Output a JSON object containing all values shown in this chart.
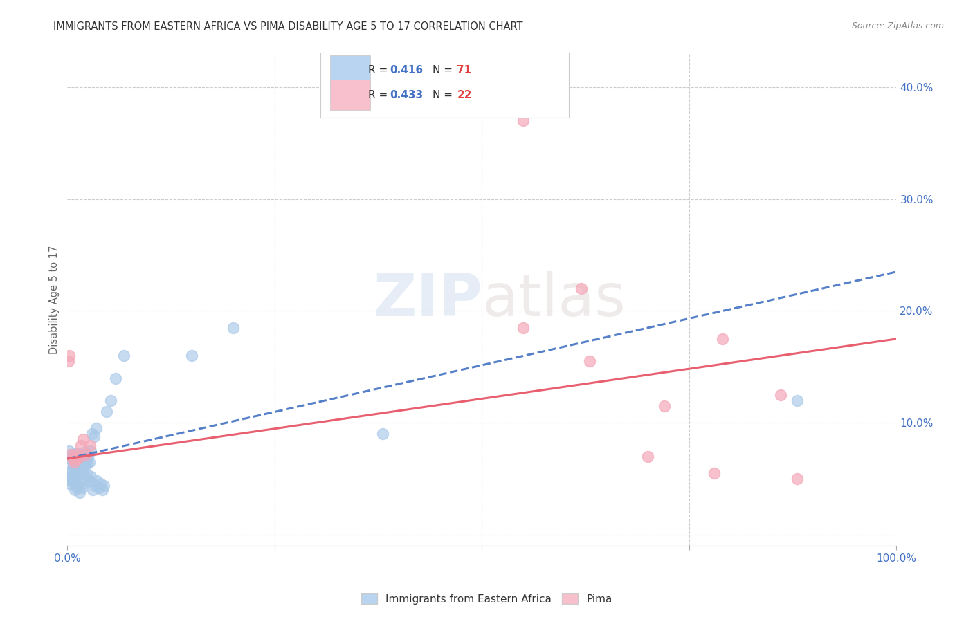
{
  "title": "IMMIGRANTS FROM EASTERN AFRICA VS PIMA DISABILITY AGE 5 TO 17 CORRELATION CHART",
  "source": "Source: ZipAtlas.com",
  "ylabel": "Disability Age 5 to 17",
  "xlim": [
    0.0,
    1.0
  ],
  "ylim": [
    -0.01,
    0.43
  ],
  "xticks": [
    0.0,
    0.25,
    0.5,
    0.75,
    1.0
  ],
  "xticklabels": [
    "0.0%",
    "",
    "",
    "",
    "100.0%"
  ],
  "yticks": [
    0.0,
    0.1,
    0.2,
    0.3,
    0.4
  ],
  "yticklabels": [
    "",
    "10.0%",
    "20.0%",
    "30.0%",
    "40.0%"
  ],
  "series1_color": "#a8c8e8",
  "series2_color": "#f4a8b8",
  "series1_line_color": "#5580c8",
  "series2_line_color": "#e86070",
  "grid_color": "#cccccc",
  "title_color": "#333333",
  "axis_label_color": "#666666",
  "tick_color": "#4472c4",
  "background_color": "#ffffff",
  "legend_box_color1": "#b8d4f0",
  "legend_box_color2": "#f8c0cc",
  "legend_text_color": "#4472c4",
  "scatter1_x": [
    0.002,
    0.003,
    0.004,
    0.005,
    0.006,
    0.007,
    0.008,
    0.009,
    0.01,
    0.011,
    0.012,
    0.013,
    0.014,
    0.015,
    0.016,
    0.017,
    0.018,
    0.019,
    0.02,
    0.021,
    0.022,
    0.023,
    0.024,
    0.025,
    0.026,
    0.028,
    0.03,
    0.032,
    0.035,
    0.003,
    0.005,
    0.007,
    0.008,
    0.009,
    0.011,
    0.013,
    0.016,
    0.019,
    0.021,
    0.001,
    0.002,
    0.003,
    0.004,
    0.006,
    0.007,
    0.009,
    0.011,
    0.013,
    0.015,
    0.017,
    0.019,
    0.022,
    0.024,
    0.026,
    0.028,
    0.031,
    0.033,
    0.036,
    0.038,
    0.04,
    0.042,
    0.044,
    0.047,
    0.052,
    0.058,
    0.068,
    0.38,
    0.2,
    0.15,
    0.88
  ],
  "scatter1_y": [
    0.075,
    0.068,
    0.07,
    0.067,
    0.072,
    0.063,
    0.066,
    0.068,
    0.071,
    0.073,
    0.065,
    0.07,
    0.068,
    0.066,
    0.069,
    0.072,
    0.065,
    0.068,
    0.07,
    0.074,
    0.066,
    0.071,
    0.064,
    0.069,
    0.065,
    0.075,
    0.09,
    0.088,
    0.095,
    0.055,
    0.058,
    0.06,
    0.052,
    0.056,
    0.054,
    0.06,
    0.058,
    0.055,
    0.062,
    0.05,
    0.048,
    0.052,
    0.045,
    0.05,
    0.048,
    0.04,
    0.042,
    0.044,
    0.038,
    0.042,
    0.046,
    0.05,
    0.054,
    0.048,
    0.052,
    0.04,
    0.044,
    0.048,
    0.042,
    0.046,
    0.04,
    0.044,
    0.11,
    0.12,
    0.14,
    0.16,
    0.09,
    0.185,
    0.16,
    0.12
  ],
  "scatter2_x": [
    0.001,
    0.002,
    0.004,
    0.006,
    0.008,
    0.01,
    0.012,
    0.014,
    0.016,
    0.019,
    0.022,
    0.027,
    0.55,
    0.62,
    0.72,
    0.79,
    0.86,
    0.55,
    0.7,
    0.63,
    0.78,
    0.88
  ],
  "scatter2_y": [
    0.155,
    0.16,
    0.072,
    0.068,
    0.065,
    0.072,
    0.068,
    0.07,
    0.08,
    0.085,
    0.072,
    0.08,
    0.37,
    0.22,
    0.115,
    0.175,
    0.125,
    0.185,
    0.07,
    0.155,
    0.055,
    0.05
  ],
  "line1_x0": 0.0,
  "line1_y0": 0.068,
  "line1_x1": 1.0,
  "line1_y1": 0.235,
  "line2_x0": 0.0,
  "line2_y0": 0.068,
  "line2_x1": 1.0,
  "line2_y1": 0.175
}
